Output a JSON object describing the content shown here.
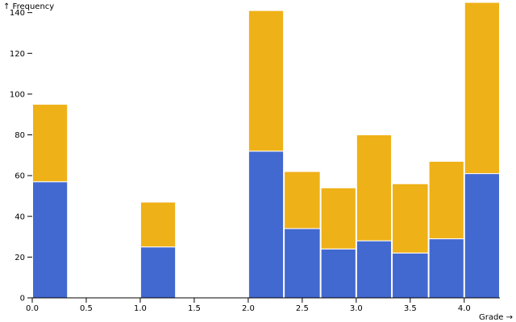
{
  "chart_data": {
    "type": "bar",
    "title": "",
    "xlabel": "Grade →",
    "ylabel": "↑ Frequency",
    "xlim": [
      0,
      4.33
    ],
    "ylim": [
      0,
      145
    ],
    "x_ticks": [
      "0.0",
      "0.5",
      "1.0",
      "1.5",
      "2.0",
      "2.5",
      "3.0",
      "3.5",
      "4.0"
    ],
    "x_tick_values": [
      0,
      0.5,
      1,
      1.5,
      2,
      2.5,
      3,
      3.5,
      4
    ],
    "y_ticks": [
      "0",
      "20",
      "40",
      "60",
      "80",
      "100",
      "120",
      "140"
    ],
    "y_tick_values": [
      0,
      20,
      40,
      60,
      80,
      100,
      120,
      140
    ],
    "grid": false,
    "stacked": true,
    "bins": [
      {
        "x0": 0.0,
        "x1": 0.33
      },
      {
        "x0": 1.0,
        "x1": 1.33
      },
      {
        "x0": 2.0,
        "x1": 2.33
      },
      {
        "x0": 2.33,
        "x1": 2.67
      },
      {
        "x0": 2.67,
        "x1": 3.0
      },
      {
        "x0": 3.0,
        "x1": 3.33
      },
      {
        "x0": 3.33,
        "x1": 3.67
      },
      {
        "x0": 3.67,
        "x1": 4.0
      },
      {
        "x0": 4.0,
        "x1": 4.33
      }
    ],
    "series": [
      {
        "color": "#4269d0",
        "values": [
          57,
          25,
          72,
          34,
          24,
          28,
          22,
          29,
          61
        ]
      },
      {
        "color": "#efb118",
        "values": [
          38,
          22,
          69,
          28,
          30,
          52,
          34,
          38,
          84
        ]
      }
    ]
  }
}
